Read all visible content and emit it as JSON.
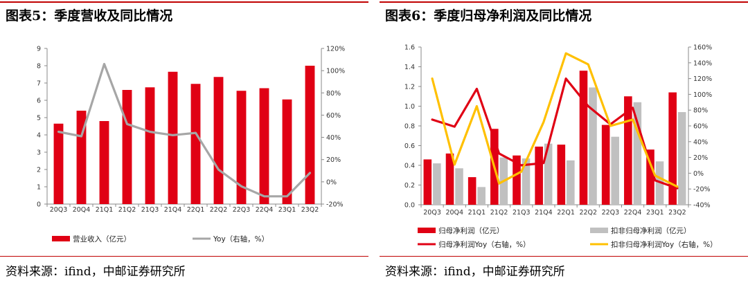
{
  "colors": {
    "red": "#e00014",
    "gray": "#a6a6a6",
    "lightgray": "#c0c0c0",
    "gold": "#ffc000",
    "accent": "#c00000"
  },
  "chart_data": [
    {
      "id": "left",
      "type": "bar+line",
      "title": "图表5：季度营收及同比情况",
      "source": "资料来源：ifind，中邮证券研究所",
      "categories": [
        "20Q3",
        "20Q4",
        "21Q1",
        "21Q2",
        "21Q3",
        "21Q4",
        "22Q1",
        "22Q2",
        "22Q3",
        "22Q4",
        "23Q1",
        "23Q2"
      ],
      "y_left": {
        "min": 0,
        "max": 9,
        "step": 1,
        "ticks": [
          "0",
          "1",
          "2",
          "3",
          "4",
          "5",
          "6",
          "7",
          "8",
          "9"
        ]
      },
      "y_right": {
        "min": -20,
        "max": 120,
        "step": 20,
        "ticks": [
          "-20%",
          "0%",
          "20%",
          "40%",
          "60%",
          "80%",
          "100%",
          "120%"
        ]
      },
      "series": [
        {
          "name": "营业收入（亿元）",
          "kind": "bar",
          "axis": "left",
          "color": "#e00014",
          "values": [
            4.65,
            5.4,
            4.8,
            6.6,
            6.75,
            7.65,
            6.95,
            7.35,
            6.55,
            6.7,
            6.05,
            8.0
          ]
        },
        {
          "name": "Yoy（右轴，%）",
          "kind": "line",
          "axis": "right",
          "color": "#a6a6a6",
          "values": [
            45,
            41,
            106,
            52,
            45,
            42,
            44,
            11,
            -4,
            -13,
            -13,
            8
          ]
        }
      ]
    },
    {
      "id": "right",
      "type": "bar+line",
      "title": "图表6：季度归母净利润及同比情况",
      "source": "资料来源：ifind，中邮证券研究所",
      "categories": [
        "20Q3",
        "20Q4",
        "21Q1",
        "21Q2",
        "21Q3",
        "21Q4",
        "22Q1",
        "22Q2",
        "22Q3",
        "22Q4",
        "23Q1",
        "23Q2"
      ],
      "y_left": {
        "min": 0,
        "max": 1.6,
        "step": 0.2,
        "ticks": [
          "0.0",
          "0.2",
          "0.4",
          "0.6",
          "0.8",
          "1.0",
          "1.2",
          "1.4",
          "1.6"
        ]
      },
      "y_right": {
        "min": -40,
        "max": 160,
        "step": 20,
        "ticks": [
          "-40%",
          "-20%",
          "0%",
          "20%",
          "40%",
          "60%",
          "80%",
          "100%",
          "120%",
          "140%",
          "160%"
        ]
      },
      "series": [
        {
          "name": "归母净利润（亿元）",
          "kind": "bar",
          "axis": "left",
          "color": "#e00014",
          "values": [
            0.46,
            0.52,
            0.28,
            0.77,
            0.5,
            0.59,
            0.61,
            1.36,
            0.81,
            1.1,
            0.56,
            1.14
          ]
        },
        {
          "name": "扣非归母净利润（亿元）",
          "kind": "bar",
          "axis": "left",
          "color": "#c0c0c0",
          "values": [
            0.42,
            0.37,
            0.18,
            0.48,
            0.47,
            0.62,
            0.45,
            1.19,
            0.69,
            1.04,
            0.44,
            0.94
          ]
        },
        {
          "name": "归母净利润Yoy（右轴，%）",
          "kind": "line",
          "axis": "right",
          "color": "#e00014",
          "values": [
            68,
            59,
            107,
            25,
            10,
            13,
            120,
            85,
            62,
            83,
            -9,
            -19
          ]
        },
        {
          "name": "扣非归母净利润Yoy（右轴，%）",
          "kind": "line",
          "axis": "right",
          "color": "#ffc000",
          "values": [
            120,
            11,
            85,
            -13,
            2,
            65,
            152,
            138,
            60,
            68,
            -3,
            -17
          ]
        }
      ]
    }
  ]
}
